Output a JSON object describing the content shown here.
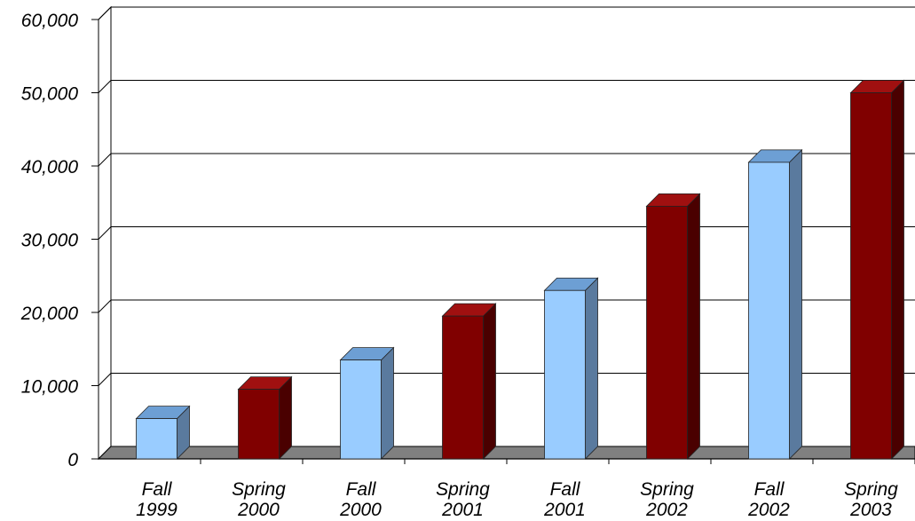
{
  "chart_data": {
    "type": "bar",
    "title": "",
    "xlabel": "",
    "ylabel": "",
    "ylim": [
      0,
      60000
    ],
    "yticks": [
      "0",
      "10,000",
      "20,000",
      "30,000",
      "40,000",
      "50,000",
      "60,000"
    ],
    "yticks_values": [
      0,
      10000,
      20000,
      30000,
      40000,
      50000,
      60000
    ],
    "categories": [
      [
        "Fall",
        "1999"
      ],
      [
        "Spring",
        "2000"
      ],
      [
        "Fall",
        "2000"
      ],
      [
        "Spring",
        "2001"
      ],
      [
        "Fall",
        "2001"
      ],
      [
        "Spring",
        "2002"
      ],
      [
        "Fall",
        "2002"
      ],
      [
        "Spring",
        "2003"
      ]
    ],
    "values": [
      5500,
      9500,
      13500,
      19500,
      23000,
      34500,
      40500,
      50000
    ],
    "grid": true,
    "style": "3d-column",
    "colors": {
      "fall": "#99CCFF",
      "spring": "#800000"
    }
  }
}
